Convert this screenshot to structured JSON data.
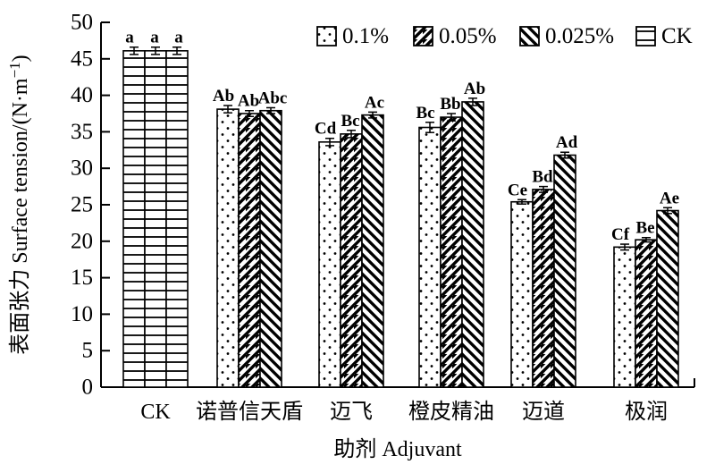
{
  "figure": {
    "background": "#ffffff",
    "ink": "#000000"
  },
  "legend": {
    "position": "top-right",
    "items": [
      {
        "label": "0.1%",
        "pattern": "dots"
      },
      {
        "label": "0.05%",
        "pattern": "diag-forward"
      },
      {
        "label": "0.025%",
        "pattern": "diag-backward"
      },
      {
        "label": "CK",
        "pattern": "horizontal-lines"
      }
    ]
  },
  "chart_data": {
    "type": "bar",
    "title": "",
    "xlabel": "助剂 Adjuvant",
    "ylabel": "表面张力 Surface tension/(N·m⁻¹)",
    "ylabel_parts": {
      "prefix": "表面张力 Surface tension/(N·m",
      "superscript": "−1",
      "suffix": ")"
    },
    "ylim": [
      0,
      50
    ],
    "yticks": [
      0,
      5,
      10,
      15,
      20,
      25,
      30,
      35,
      40,
      45,
      50
    ],
    "grid": false,
    "legend_position": "top-right",
    "categories": [
      "CK",
      "诺普信天盾",
      "迈飞",
      "橙皮精油",
      "迈道",
      "极润"
    ],
    "control_category": "CK",
    "control_pattern": "horizontal-lines",
    "series": [
      {
        "name": "0.1%",
        "pattern": "dots",
        "values": [
          46.1,
          38.1,
          33.6,
          35.6,
          25.4,
          19.2
        ],
        "errors": [
          0.5,
          0.5,
          0.5,
          0.7,
          0.3,
          0.4
        ],
        "letters": [
          "a",
          "Ab",
          "Cd",
          "Bc",
          "Ce",
          "Cf"
        ]
      },
      {
        "name": "0.05%",
        "pattern": "diag-forward",
        "values": [
          46.1,
          37.5,
          34.7,
          37.0,
          27.1,
          20.2
        ],
        "errors": [
          0.5,
          0.4,
          0.5,
          0.5,
          0.4,
          0.3
        ],
        "letters": [
          "a",
          "Ab",
          "Bc",
          "Bb",
          "Bd",
          "Be"
        ]
      },
      {
        "name": "0.025%",
        "pattern": "diag-backward",
        "values": [
          46.1,
          37.9,
          37.3,
          39.1,
          31.8,
          24.2
        ],
        "errors": [
          0.5,
          0.4,
          0.4,
          0.5,
          0.4,
          0.4
        ],
        "letters": [
          "a",
          "Abc",
          "Ac",
          "Ab",
          "Ad",
          "Ae"
        ]
      }
    ]
  }
}
